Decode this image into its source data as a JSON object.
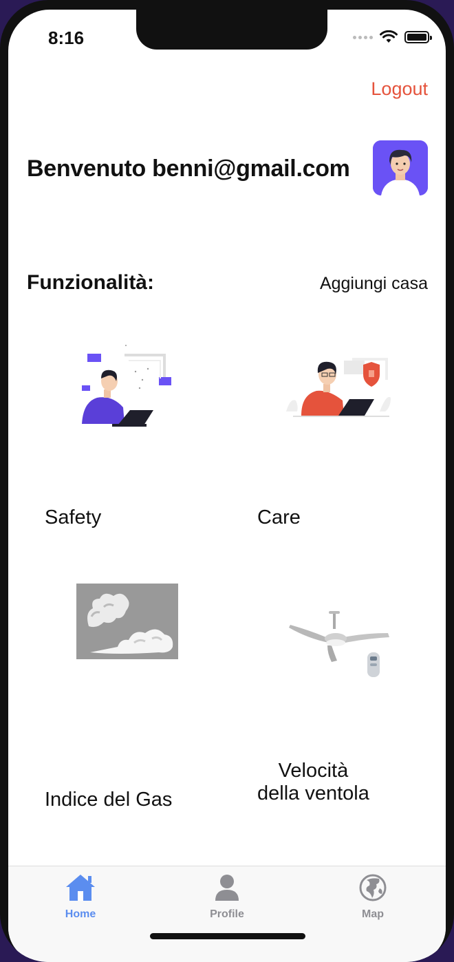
{
  "status_bar": {
    "time": "8:16"
  },
  "header": {
    "logout_label": "Logout",
    "welcome_text": "Benvenuto benni@gmail.com"
  },
  "features": {
    "title": "Funzionalità:",
    "add_home_label": "Aggiungi casa",
    "items": [
      {
        "label": "Safety",
        "icon": "developer-illustration"
      },
      {
        "label": "Care",
        "icon": "security-illustration"
      },
      {
        "label": "Indice del Gas",
        "icon": "gas-smoke-image"
      },
      {
        "label_line1": "Velocità",
        "label_line2": "della ventola",
        "icon": "ceiling-fan-image"
      }
    ]
  },
  "tabbar": {
    "tabs": [
      {
        "label": "Home",
        "icon": "home-icon",
        "active": true
      },
      {
        "label": "Profile",
        "icon": "person-icon",
        "active": false
      },
      {
        "label": "Map",
        "icon": "globe-icon",
        "active": false
      }
    ]
  },
  "colors": {
    "accent": "#5b8def",
    "logout": "#e5533c",
    "inactive_tab": "#8e8e93",
    "avatar_bg": "#6a52f5"
  }
}
